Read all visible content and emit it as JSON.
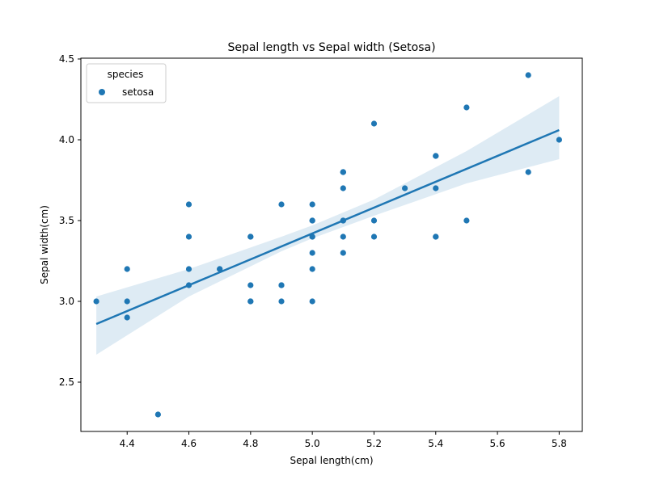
{
  "chart_data": {
    "type": "scatter",
    "title": "Sepal length vs Sepal width (Setosa)",
    "xlabel": "Sepal length(cm)",
    "ylabel": "Sepal width(cm)",
    "xlim": [
      4.25,
      5.875
    ],
    "ylim": [
      2.195,
      4.505
    ],
    "x_ticks": [
      "4.4",
      "4.6",
      "4.8",
      "5.0",
      "5.2",
      "5.4",
      "5.6",
      "5.8"
    ],
    "y_ticks": [
      "2.5",
      "3.0",
      "3.5",
      "4.0",
      "4.5"
    ],
    "grid": false,
    "legend": {
      "title": "species",
      "placement": "upper-left",
      "entries": [
        "setosa"
      ]
    },
    "colors": {
      "points": "#1f77b4",
      "line": "#1f77b4",
      "band": "#1f77b4"
    },
    "series": [
      {
        "name": "setosa",
        "points": [
          [
            5.1,
            3.5
          ],
          [
            4.9,
            3.0
          ],
          [
            4.7,
            3.2
          ],
          [
            4.6,
            3.1
          ],
          [
            5.0,
            3.6
          ],
          [
            5.4,
            3.9
          ],
          [
            4.6,
            3.4
          ],
          [
            5.0,
            3.4
          ],
          [
            4.4,
            2.9
          ],
          [
            4.9,
            3.1
          ],
          [
            5.4,
            3.7
          ],
          [
            4.8,
            3.4
          ],
          [
            4.8,
            3.0
          ],
          [
            4.3,
            3.0
          ],
          [
            5.8,
            4.0
          ],
          [
            5.7,
            4.4
          ],
          [
            5.4,
            3.9
          ],
          [
            5.1,
            3.5
          ],
          [
            5.7,
            3.8
          ],
          [
            5.1,
            3.8
          ],
          [
            5.4,
            3.4
          ],
          [
            5.1,
            3.7
          ],
          [
            4.6,
            3.6
          ],
          [
            5.1,
            3.3
          ],
          [
            4.8,
            3.4
          ],
          [
            5.0,
            3.0
          ],
          [
            5.0,
            3.4
          ],
          [
            5.2,
            3.5
          ],
          [
            5.2,
            3.4
          ],
          [
            4.7,
            3.2
          ],
          [
            4.8,
            3.1
          ],
          [
            5.4,
            3.4
          ],
          [
            5.2,
            4.1
          ],
          [
            5.5,
            4.2
          ],
          [
            4.9,
            3.1
          ],
          [
            5.0,
            3.2
          ],
          [
            5.5,
            3.5
          ],
          [
            4.9,
            3.6
          ],
          [
            4.4,
            3.0
          ],
          [
            5.1,
            3.4
          ],
          [
            5.0,
            3.5
          ],
          [
            4.5,
            2.3
          ],
          [
            4.4,
            3.2
          ],
          [
            5.0,
            3.5
          ],
          [
            5.1,
            3.8
          ],
          [
            4.8,
            3.0
          ],
          [
            5.1,
            3.8
          ],
          [
            4.6,
            3.2
          ],
          [
            5.3,
            3.7
          ],
          [
            5.0,
            3.3
          ]
        ]
      }
    ],
    "regression": {
      "x_range": [
        4.3,
        5.8
      ],
      "y_at_start": 2.86,
      "y_at_end": 4.06,
      "ci_lower": [
        [
          4.3,
          2.67
        ],
        [
          4.6,
          3.03
        ],
        [
          4.9,
          3.31
        ],
        [
          5.0,
          3.39
        ],
        [
          5.2,
          3.53
        ],
        [
          5.5,
          3.73
        ],
        [
          5.8,
          3.88
        ]
      ],
      "ci_upper": [
        [
          4.3,
          3.03
        ],
        [
          4.6,
          3.2
        ],
        [
          4.9,
          3.4
        ],
        [
          5.0,
          3.47
        ],
        [
          5.2,
          3.63
        ],
        [
          5.5,
          3.93
        ],
        [
          5.8,
          4.27
        ]
      ]
    }
  }
}
